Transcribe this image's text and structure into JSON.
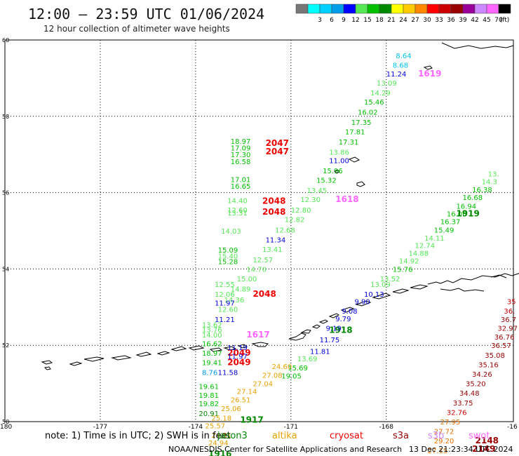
{
  "header": {
    "title": "12:00 — 23:59 UTC 01/06/2024",
    "subtitle": "12 hour collection of altimeter wave heights"
  },
  "legend": {
    "swatches": [
      {
        "color": "#777777",
        "label": ""
      },
      {
        "color": "#00ffff",
        "label": "3"
      },
      {
        "color": "#00d0ff",
        "label": "6"
      },
      {
        "color": "#009ee8",
        "label": "9"
      },
      {
        "color": "#0000ff",
        "label": "12"
      },
      {
        "color": "#55e855",
        "label": "15"
      },
      {
        "color": "#00c000",
        "label": "18"
      },
      {
        "color": "#008800",
        "label": "21"
      },
      {
        "color": "#ffff00",
        "label": "24"
      },
      {
        "color": "#ffcc00",
        "label": "27"
      },
      {
        "color": "#ff8800",
        "label": "30"
      },
      {
        "color": "#ff0000",
        "label": "33"
      },
      {
        "color": "#cc0000",
        "label": "36"
      },
      {
        "color": "#990000",
        "label": "39"
      },
      {
        "color": "#990099",
        "label": "42"
      },
      {
        "color": "#cc88ff",
        "label": "45"
      },
      {
        "color": "#ff66ff",
        "label": "70"
      },
      {
        "color": "#000000",
        "label": "(ft)"
      }
    ]
  },
  "footer": {
    "note": "note: 1) Time is in UTC; 2) SWH is in feet",
    "satellites": [
      {
        "name": "jason3",
        "color": "#008800"
      },
      {
        "name": "altika",
        "color": "#e8a000"
      },
      {
        "name": "cryosat",
        "color": "#ee0000"
      },
      {
        "name": "s3a",
        "color": "#990000"
      },
      {
        "name": "s3b",
        "color": "#cc88ff"
      },
      {
        "name": "swot",
        "color": "#ff66ff"
      }
    ],
    "credit": "NOAA/NESDIS Center for Satellite Applications and Research",
    "timestamp": "13 Dec 21:23:34 UTC 2024"
  },
  "chart_data": {
    "type": "scatter",
    "x_ticks": [
      "-180",
      "-177",
      "-174",
      "-171",
      "-168",
      "-16"
    ],
    "y_ticks": [
      "60",
      "58",
      "56",
      "54",
      "52",
      "50"
    ],
    "xlim": [
      -180,
      -164
    ],
    "ylim": [
      50,
      60
    ],
    "grid": true,
    "points": [
      {
        "x": -167.7,
        "y": 59.6,
        "text": "8.64",
        "color": "#00c4ee"
      },
      {
        "x": -167.8,
        "y": 59.35,
        "text": "8.68",
        "color": "#00c4ee"
      },
      {
        "x": -168.0,
        "y": 59.12,
        "text": "11.24",
        "color": "#0000dd"
      },
      {
        "x": -167.0,
        "y": 59.12,
        "text": "1619",
        "color": "#ff66ff",
        "time": true
      },
      {
        "x": -168.3,
        "y": 58.88,
        "text": "13.09",
        "color": "#55e855"
      },
      {
        "x": -168.5,
        "y": 58.62,
        "text": "14.29",
        "color": "#55e855"
      },
      {
        "x": -168.7,
        "y": 58.38,
        "text": "15.46",
        "color": "#00c000"
      },
      {
        "x": -168.9,
        "y": 58.12,
        "text": "16.02",
        "color": "#00c000"
      },
      {
        "x": -169.1,
        "y": 57.85,
        "text": "17.35",
        "color": "#00c000"
      },
      {
        "x": -169.3,
        "y": 57.6,
        "text": "17.81",
        "color": "#00c000"
      },
      {
        "x": -169.5,
        "y": 57.33,
        "text": "17.31",
        "color": "#00c000"
      },
      {
        "x": -169.8,
        "y": 57.07,
        "text": "13.86",
        "color": "#55e855"
      },
      {
        "x": -169.8,
        "y": 56.85,
        "text": "11.00",
        "color": "#0000dd"
      },
      {
        "x": -170.0,
        "y": 56.58,
        "text": "15.96",
        "color": "#00c000"
      },
      {
        "x": -170.2,
        "y": 56.33,
        "text": "15.32",
        "color": "#00c000"
      },
      {
        "x": -170.5,
        "y": 56.07,
        "text": "13.45",
        "color": "#55e855"
      },
      {
        "x": -169.6,
        "y": 55.83,
        "text": "1618",
        "color": "#ff66ff",
        "time": true
      },
      {
        "x": -170.7,
        "y": 55.83,
        "text": "12.30",
        "color": "#55e855"
      },
      {
        "x": -171.0,
        "y": 55.55,
        "text": "12.80",
        "color": "#55e855"
      },
      {
        "x": -171.2,
        "y": 55.3,
        "text": "12.82",
        "color": "#55e855"
      },
      {
        "x": -171.5,
        "y": 55.03,
        "text": "12.68",
        "color": "#55e855"
      },
      {
        "x": -171.8,
        "y": 54.77,
        "text": "11.34",
        "color": "#0000dd"
      },
      {
        "x": -171.9,
        "y": 54.52,
        "text": "13.41",
        "color": "#55e855"
      },
      {
        "x": -172.2,
        "y": 54.25,
        "text": "12.57",
        "color": "#55e855"
      },
      {
        "x": -172.4,
        "y": 54.0,
        "text": "14.70",
        "color": "#55e855"
      },
      {
        "x": -172.7,
        "y": 53.75,
        "text": "15.00",
        "color": "#55e855"
      },
      {
        "x": -172.9,
        "y": 53.48,
        "text": "14.89",
        "color": "#55e855"
      },
      {
        "x": -173.1,
        "y": 53.2,
        "text": "14.36",
        "color": "#55e855"
      },
      {
        "x": -173.3,
        "y": 52.95,
        "text": "12.60",
        "color": "#55e855"
      },
      {
        "x": -173.4,
        "y": 52.68,
        "text": "11.21",
        "color": "#0000dd"
      },
      {
        "x": -172.4,
        "y": 52.28,
        "text": "1617",
        "color": "#ff66ff",
        "time": true
      },
      {
        "x": -172.9,
        "y": 57.35,
        "text": "18.97",
        "color": "#00c000"
      },
      {
        "x": -172.9,
        "y": 57.18,
        "text": "17.09",
        "color": "#00c000"
      },
      {
        "x": -172.9,
        "y": 57.0,
        "text": "17.30",
        "color": "#00c000"
      },
      {
        "x": -172.9,
        "y": 56.82,
        "text": "16.58",
        "color": "#00c000"
      },
      {
        "x": -171.8,
        "y": 57.3,
        "text": "2047",
        "color": "#ee0000",
        "time": true
      },
      {
        "x": -171.8,
        "y": 57.08,
        "text": "2047",
        "color": "#ee0000",
        "time": true
      },
      {
        "x": -172.9,
        "y": 56.35,
        "text": "17.01",
        "color": "#00c000"
      },
      {
        "x": -172.9,
        "y": 56.18,
        "text": "16.65",
        "color": "#00c000"
      },
      {
        "x": -173.0,
        "y": 55.8,
        "text": "14.40",
        "color": "#55e855"
      },
      {
        "x": -171.9,
        "y": 55.78,
        "text": "2048",
        "color": "#ee0000",
        "time": true
      },
      {
        "x": -173.0,
        "y": 55.55,
        "text": "12.60",
        "color": "#55e855"
      },
      {
        "x": -173.0,
        "y": 55.48,
        "text": "13.31",
        "color": "#55e855"
      },
      {
        "x": -171.9,
        "y": 55.5,
        "text": "2048",
        "color": "#ee0000",
        "time": true
      },
      {
        "x": -173.2,
        "y": 55.0,
        "text": "14.03",
        "color": "#55e855"
      },
      {
        "x": -173.3,
        "y": 54.5,
        "text": "15.09",
        "color": "#00c000"
      },
      {
        "x": -173.3,
        "y": 54.35,
        "text": "15.40",
        "color": "#55e855"
      },
      {
        "x": -173.3,
        "y": 54.2,
        "text": "15.28",
        "color": "#00c000"
      },
      {
        "x": -173.4,
        "y": 53.6,
        "text": "12.55",
        "color": "#55e855"
      },
      {
        "x": -173.4,
        "y": 53.35,
        "text": "12.06",
        "color": "#55e855"
      },
      {
        "x": -172.2,
        "y": 53.35,
        "text": "2048",
        "color": "#ee0000",
        "time": true
      },
      {
        "x": -173.4,
        "y": 53.12,
        "text": "11.97",
        "color": "#0000dd"
      },
      {
        "x": -173.8,
        "y": 52.55,
        "text": "13.62",
        "color": "#55e855"
      },
      {
        "x": -173.8,
        "y": 52.42,
        "text": "13.76",
        "color": "#55e855"
      },
      {
        "x": -173.8,
        "y": 52.28,
        "text": "14.00",
        "color": "#55e855"
      },
      {
        "x": -173.8,
        "y": 52.05,
        "text": "16.62",
        "color": "#00c000"
      },
      {
        "x": -173.8,
        "y": 51.8,
        "text": "18.97",
        "color": "#00c000"
      },
      {
        "x": -173.0,
        "y": 51.8,
        "text": "2049",
        "color": "#ee0000",
        "time": true
      },
      {
        "x": -173.8,
        "y": 51.55,
        "text": "19.41",
        "color": "#00c000"
      },
      {
        "x": -173.0,
        "y": 51.55,
        "text": "2049",
        "color": "#ee0000",
        "time": true
      },
      {
        "x": -173.0,
        "y": 51.95,
        "text": "11.19",
        "color": "#0000dd"
      },
      {
        "x": -173.0,
        "y": 51.72,
        "text": "11.97",
        "color": "#0000dd"
      },
      {
        "x": -173.8,
        "y": 51.3,
        "text": "8.76",
        "color": "#0099ee"
      },
      {
        "x": -173.3,
        "y": 51.3,
        "text": "11.58",
        "color": "#0000dd"
      },
      {
        "x": -173.9,
        "y": 50.93,
        "text": "19.61",
        "color": "#00c000"
      },
      {
        "x": -173.9,
        "y": 50.7,
        "text": "19.81",
        "color": "#00c000"
      },
      {
        "x": -173.9,
        "y": 50.48,
        "text": "19.82",
        "color": "#00c000"
      },
      {
        "x": -173.9,
        "y": 50.22,
        "text": "20.91",
        "color": "#008800"
      },
      {
        "x": -172.6,
        "y": 50.05,
        "text": "1917",
        "color": "#008800",
        "time": true
      },
      {
        "x": -173.6,
        "y": 49.15,
        "text": "1916",
        "color": "#008800",
        "time": true
      },
      {
        "x": -169.8,
        "y": 52.4,
        "text": "1918",
        "color": "#008800",
        "time": true
      },
      {
        "x": -170.4,
        "y": 51.85,
        "text": "11.81",
        "color": "#0000dd"
      },
      {
        "x": -170.8,
        "y": 51.65,
        "text": "13.69",
        "color": "#55e855"
      },
      {
        "x": -171.1,
        "y": 51.42,
        "text": "15.69",
        "color": "#00c000"
      },
      {
        "x": -170.1,
        "y": 52.15,
        "text": "11.75",
        "color": "#0000dd"
      },
      {
        "x": -171.3,
        "y": 51.2,
        "text": "19.05",
        "color": "#00c000"
      },
      {
        "x": -169.9,
        "y": 52.45,
        "text": "9.19",
        "color": "#0000dd"
      },
      {
        "x": -169.6,
        "y": 52.7,
        "text": "9.79",
        "color": "#0000dd"
      },
      {
        "x": -169.4,
        "y": 52.9,
        "text": "9.08",
        "color": "#0000dd"
      },
      {
        "x": -169.0,
        "y": 53.15,
        "text": "9.90",
        "color": "#0000dd"
      },
      {
        "x": -168.7,
        "y": 53.35,
        "text": "10.13",
        "color": "#0000dd"
      },
      {
        "x": -168.5,
        "y": 53.6,
        "text": "13.09",
        "color": "#55e855"
      },
      {
        "x": -168.2,
        "y": 53.75,
        "text": "13.52",
        "color": "#55e855"
      },
      {
        "x": -167.8,
        "y": 54.0,
        "text": "15.76",
        "color": "#00c000"
      },
      {
        "x": -167.6,
        "y": 54.22,
        "text": "14.92",
        "color": "#55e855"
      },
      {
        "x": -167.3,
        "y": 54.42,
        "text": "14.88",
        "color": "#55e855"
      },
      {
        "x": -167.1,
        "y": 54.62,
        "text": "12.74",
        "color": "#55e855"
      },
      {
        "x": -166.8,
        "y": 54.82,
        "text": "14.11",
        "color": "#55e855"
      },
      {
        "x": -166.5,
        "y": 55.03,
        "text": "15.49",
        "color": "#00c000"
      },
      {
        "x": -166.3,
        "y": 55.25,
        "text": "16.37",
        "color": "#00c000"
      },
      {
        "x": -166.1,
        "y": 55.45,
        "text": "16.06",
        "color": "#00c000"
      },
      {
        "x": -165.8,
        "y": 55.65,
        "text": "16.94",
        "color": "#00c000"
      },
      {
        "x": -165.6,
        "y": 55.88,
        "text": "16.68",
        "color": "#00c000"
      },
      {
        "x": -165.3,
        "y": 56.08,
        "text": "16.38",
        "color": "#00c000"
      },
      {
        "x": -165.0,
        "y": 56.3,
        "text": "14.3",
        "color": "#55e855"
      },
      {
        "x": -164.8,
        "y": 56.5,
        "text": "13.",
        "color": "#55e855"
      },
      {
        "x": -165.8,
        "y": 55.45,
        "text": "1919",
        "color": "#008800",
        "time": true
      },
      {
        "x": -172.7,
        "y": 50.8,
        "text": "27.14",
        "color": "#e8a000"
      },
      {
        "x": -172.9,
        "y": 50.58,
        "text": "26.51",
        "color": "#e8a000"
      },
      {
        "x": -173.2,
        "y": 50.35,
        "text": "25.06",
        "color": "#e8a000"
      },
      {
        "x": -173.5,
        "y": 50.1,
        "text": "25.18",
        "color": "#e8a000"
      },
      {
        "x": -173.7,
        "y": 49.9,
        "text": "25.57",
        "color": "#e8a000"
      },
      {
        "x": -173.5,
        "y": 49.65,
        "text": "24.51",
        "color": "#e8a000"
      },
      {
        "x": -173.6,
        "y": 49.45,
        "text": "24.94",
        "color": "#e8a000"
      },
      {
        "x": -172.2,
        "y": 51.0,
        "text": "27.04",
        "color": "#e8a000"
      },
      {
        "x": -171.9,
        "y": 51.22,
        "text": "27.08",
        "color": "#e8a000"
      },
      {
        "x": -171.6,
        "y": 51.45,
        "text": "24.60",
        "color": "#e8a000"
      },
      {
        "x": -164.2,
        "y": 53.15,
        "text": "35",
        "color": "#cc0000"
      },
      {
        "x": -164.3,
        "y": 52.9,
        "text": "36.",
        "color": "#cc0000"
      },
      {
        "x": -164.4,
        "y": 52.68,
        "text": "36.7",
        "color": "#990000"
      },
      {
        "x": -164.5,
        "y": 52.45,
        "text": "32.97",
        "color": "#990000"
      },
      {
        "x": -164.6,
        "y": 52.22,
        "text": "36.76",
        "color": "#990000"
      },
      {
        "x": -164.7,
        "y": 52.0,
        "text": "36.57",
        "color": "#990000"
      },
      {
        "x": -164.9,
        "y": 51.75,
        "text": "35.08",
        "color": "#990000"
      },
      {
        "x": -165.1,
        "y": 51.5,
        "text": "35.16",
        "color": "#990000"
      },
      {
        "x": -165.3,
        "y": 51.25,
        "text": "34.26",
        "color": "#990000"
      },
      {
        "x": -165.5,
        "y": 51.0,
        "text": "35.20",
        "color": "#990000"
      },
      {
        "x": -165.7,
        "y": 50.75,
        "text": "34.48",
        "color": "#990000"
      },
      {
        "x": -165.9,
        "y": 50.5,
        "text": "33.75",
        "color": "#990000"
      },
      {
        "x": -166.1,
        "y": 50.25,
        "text": "32.76",
        "color": "#cc0000"
      },
      {
        "x": -166.3,
        "y": 50.0,
        "text": "27.95",
        "color": "#e87000"
      },
      {
        "x": -166.5,
        "y": 49.75,
        "text": "27.72",
        "color": "#e87000"
      },
      {
        "x": -166.5,
        "y": 49.5,
        "text": "29.20",
        "color": "#e87000"
      },
      {
        "x": -166.7,
        "y": 49.25,
        "text": "27.15",
        "color": "#e87000"
      },
      {
        "x": -165.2,
        "y": 49.5,
        "text": "2148",
        "color": "#990000",
        "time": true
      },
      {
        "x": -165.3,
        "y": 49.28,
        "text": "2149",
        "color": "#990000",
        "time": true
      }
    ]
  }
}
